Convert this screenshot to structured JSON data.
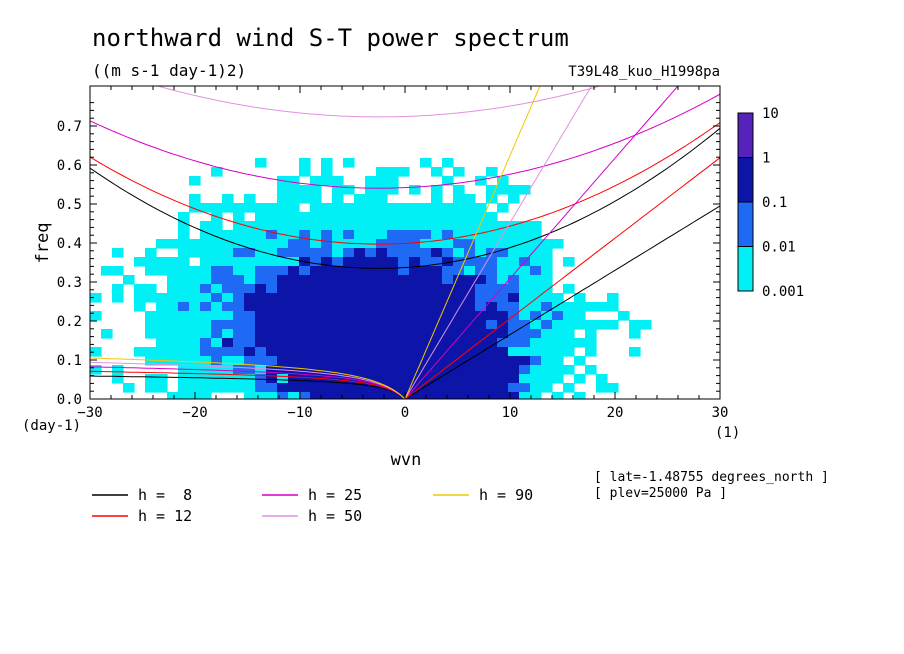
{
  "chart_data": {
    "type": "heatmap",
    "title": "northward wind S-T power spectrum",
    "units": "((m s-1 day-1)2)",
    "experiment": "T39L48_kuo_H1998pa",
    "xlabel": "wvn",
    "ylabel": "freq",
    "y_unit": "(day-1)",
    "x_unit": "(1)",
    "xlim": [
      -30,
      30
    ],
    "ylim": [
      0,
      0.78
    ],
    "x_ticks": [
      "-30",
      "-20",
      "-10",
      "0",
      "10",
      "20",
      "30"
    ],
    "y_ticks": [
      "0.0",
      "0.1",
      "0.2",
      "0.3",
      "0.4",
      "0.5",
      "0.6",
      "0.7"
    ],
    "colorbar": {
      "labels": [
        "10",
        "1",
        "0.1",
        "0.01",
        "0.001"
      ],
      "colors": [
        "#5522bb",
        "#0d14a8",
        "#1f6af5",
        "#00f0f5"
      ]
    },
    "info": [
      "[ lat=-1.48755 degrees_north ]",
      "[ plev=25000 Pa ]"
    ],
    "dispersion_curves": [
      {
        "label": "h =  8",
        "color": "#000000"
      },
      {
        "label": "h = 12",
        "color": "#ff0000"
      },
      {
        "label": "h = 25",
        "color": "#d400c8"
      },
      {
        "label": "h = 50",
        "color": "#e090e0"
      },
      {
        "label": "h = 90",
        "color": "#f0c800"
      }
    ],
    "field_levels": [
      {
        "region": "broad background",
        "approx_value": 0.001
      },
      {
        "region": "wvn -20..15, freq 0..0.3",
        "approx_value": 0.01
      },
      {
        "region": "wvn -10..8, freq 0..0.12",
        "approx_value": 0.1
      }
    ]
  }
}
